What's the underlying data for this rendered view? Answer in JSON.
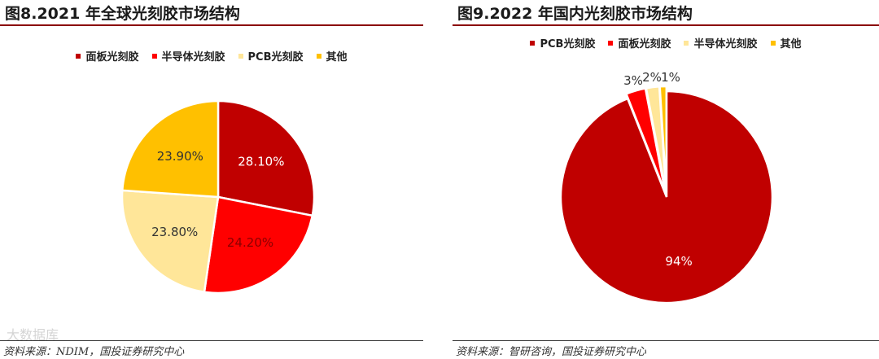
{
  "left": {
    "title": "图8.2021 年全球光刻胶市场结构",
    "source": "资料来源：NDIM，国投证券研究中心",
    "watermark": "大数据库"
  },
  "right": {
    "title": "图9.2022 年国内光刻胶市场结构",
    "source": "资料来源：智研咨询，国投证券研究中心"
  },
  "chart_data": [
    {
      "type": "pie",
      "title": "图8.2021 年全球光刻胶市场结构",
      "categories": [
        "面板光刻胶",
        "半导体光刻胶",
        "PCB光刻胶",
        "其他"
      ],
      "values": [
        28.1,
        24.2,
        23.8,
        23.9
      ],
      "labels": [
        "28.10%",
        "24.20%",
        "23.80%",
        "23.90%"
      ],
      "colors": [
        "#c00000",
        "#ff0000",
        "#ffe699",
        "#ffc000"
      ],
      "legend_order": [
        "面板光刻胶",
        "半导体光刻胶",
        "PCB光刻胶",
        "其他"
      ],
      "legend_colors": [
        "#c00000",
        "#ff0000",
        "#ffe699",
        "#ffc000"
      ],
      "legend_position": "top"
    },
    {
      "type": "pie",
      "title": "图9.2022 年国内光刻胶市场结构",
      "categories": [
        "PCB光刻胶",
        "面板光刻胶",
        "半导体光刻胶",
        "其他"
      ],
      "values": [
        94,
        3,
        2,
        1
      ],
      "labels": [
        "94%",
        "3%",
        "2%",
        "1%"
      ],
      "colors": [
        "#c00000",
        "#ff0000",
        "#ffe699",
        "#ffc000"
      ],
      "legend_order": [
        "PCB光刻胶",
        "面板光刻胶",
        "半导体光刻胶",
        "其他"
      ],
      "legend_colors": [
        "#c00000",
        "#ff0000",
        "#ffe699",
        "#ffc000"
      ],
      "legend_position": "top"
    }
  ]
}
